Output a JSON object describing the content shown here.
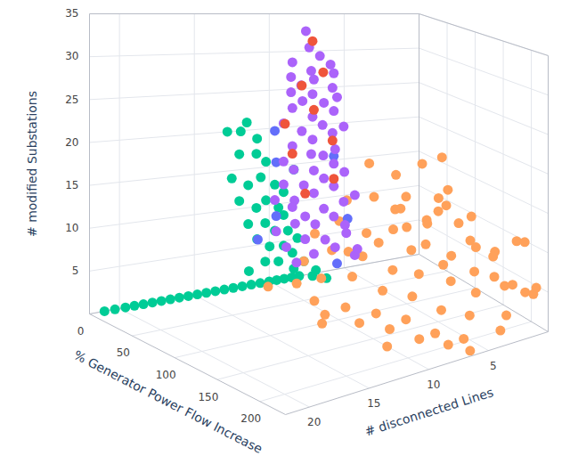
{
  "chart_data": {
    "type": "scatter3d",
    "xlabel": "% Generator Power Flow Increase",
    "ylabel": "# disconnected Lines",
    "zlabel": "# modified Substations",
    "xlim": [
      0,
      230
    ],
    "xticks": [
      0,
      50,
      100,
      150,
      200
    ],
    "ylim": [
      0,
      22
    ],
    "yticks": [
      5,
      10,
      15,
      20
    ],
    "zlim": [
      0,
      35
    ],
    "zticks": [
      5,
      10,
      15,
      20,
      25,
      30,
      35
    ],
    "grid": true,
    "series": [
      {
        "color": "#00cc96",
        "x": [
          0,
          0,
          0,
          0,
          0,
          0,
          0,
          0,
          0,
          0,
          0,
          0,
          0,
          0,
          0,
          0,
          0,
          0,
          0,
          0,
          0,
          0,
          0,
          0,
          2,
          0,
          4,
          0,
          3,
          6,
          0,
          2,
          5,
          8,
          0,
          3,
          6,
          9,
          2,
          5,
          8,
          10,
          4,
          7,
          10,
          12,
          5,
          9,
          14,
          12,
          15,
          3,
          18,
          20,
          25,
          30,
          10,
          14
        ],
        "y": [
          21,
          20.3,
          19.6,
          19,
          18.4,
          17.8,
          17.2,
          16.6,
          16,
          15.4,
          14.8,
          14.2,
          13.6,
          13,
          12.4,
          11.8,
          11.2,
          10.6,
          10,
          9.5,
          9,
          8.5,
          8,
          12.8,
          12,
          11.5,
          11,
          12,
          11,
          10.5,
          12.5,
          11.5,
          10.8,
          10,
          12,
          11,
          10.5,
          9.8,
          11.5,
          10.5,
          10,
          9.5,
          11,
          10.3,
          9.5,
          9,
          10.5,
          9.8,
          9,
          9.3,
          8.8,
          11.5,
          8.5,
          8,
          8,
          7.5,
          9.5,
          9
        ],
        "z": [
          0,
          0,
          0,
          0,
          0,
          0,
          0,
          0,
          0,
          0,
          0,
          0,
          0,
          0,
          0,
          0,
          0,
          0,
          0,
          0,
          0,
          0,
          0,
          20,
          20,
          21,
          19,
          17,
          17,
          16,
          14,
          13,
          14,
          13,
          11,
          10,
          11,
          10,
          8,
          8,
          7,
          9,
          6,
          5,
          5,
          4,
          3,
          3,
          2,
          7,
          6,
          2,
          3,
          1,
          2,
          1,
          12,
          15
        ]
      },
      {
        "color": "#ffa15a",
        "x": [
          40,
          60,
          80,
          100,
          120,
          70,
          50,
          90,
          110,
          140,
          160,
          60,
          80,
          100,
          130,
          150,
          180,
          200,
          45,
          70,
          95,
          120,
          140,
          170,
          190,
          210,
          225,
          50,
          75,
          100,
          125,
          150,
          175,
          200,
          220,
          60,
          85,
          110,
          135,
          160,
          185,
          210,
          230,
          40,
          100,
          130,
          155,
          180,
          205,
          220,
          30,
          55,
          85,
          115,
          145,
          175,
          200,
          230,
          35,
          65,
          95,
          125,
          155,
          185,
          210,
          120,
          90,
          150,
          60,
          30,
          115,
          170
        ],
        "y": [
          5,
          4,
          3,
          2,
          3,
          6,
          7,
          5,
          4,
          2,
          3,
          8,
          7,
          6,
          5,
          4,
          2,
          3,
          9,
          9,
          8,
          7,
          6,
          5,
          4,
          2,
          1,
          10,
          10,
          9,
          8,
          7,
          6,
          5,
          3,
          11,
          11,
          10,
          9,
          8,
          7,
          6,
          4,
          12,
          11,
          10,
          9,
          8,
          7,
          6,
          6,
          5,
          4,
          3,
          2,
          1,
          0.5,
          1,
          3,
          2,
          1,
          1,
          1,
          0.5,
          1,
          6,
          2,
          5,
          1,
          2,
          12,
          10
        ],
        "z": [
          16,
          15,
          17,
          14,
          13,
          13,
          12,
          12,
          11,
          12,
          10,
          10,
          9,
          10,
          9,
          8,
          9,
          7,
          8,
          7,
          7,
          6,
          6,
          6,
          5,
          6,
          5,
          5,
          4,
          5,
          4,
          4,
          3,
          3,
          3,
          3,
          2,
          2,
          2,
          2,
          1,
          1,
          2,
          2,
          1,
          1,
          1,
          0.5,
          0.5,
          0,
          4,
          6,
          6,
          5,
          5,
          4,
          4,
          6,
          9,
          8,
          9,
          7,
          7,
          10,
          11,
          15,
          18,
          14,
          11,
          6,
          1,
          0
        ]
      },
      {
        "color": "#636efa",
        "x": [
          8,
          10,
          30,
          40,
          10,
          5,
          35
        ],
        "y": [
          10,
          10,
          7,
          6.5,
          10,
          11,
          7
        ],
        "z": [
          20,
          16,
          17,
          9,
          9,
          6,
          3
        ]
      },
      {
        "color": "#ab63fa",
        "x": [
          10,
          15,
          20,
          12,
          25,
          18,
          30,
          10,
          22,
          14,
          28,
          35,
          10,
          20,
          16,
          26,
          12,
          30,
          20,
          24,
          10,
          34,
          15,
          28,
          20,
          12,
          32,
          25,
          18,
          10,
          30,
          22,
          14,
          35,
          26,
          18,
          10,
          30,
          22,
          15,
          34,
          26,
          12,
          20,
          30,
          16,
          24,
          36,
          10,
          20,
          28,
          14,
          32,
          22,
          40,
          18,
          38,
          44,
          8,
          40
        ],
        "y": [
          8,
          8,
          7.5,
          9,
          7,
          8,
          7,
          9,
          8,
          8.5,
          7,
          7,
          9,
          8,
          8.5,
          7.5,
          9,
          7,
          8,
          7.5,
          9.5,
          6.5,
          8.5,
          7,
          8,
          9,
          7,
          7.5,
          8,
          9.5,
          7,
          8,
          9,
          6.5,
          7.5,
          8.5,
          9.5,
          7,
          8,
          9,
          6.5,
          7.5,
          9,
          8.5,
          7,
          9,
          8,
          6.5,
          10,
          8.5,
          7.5,
          9.5,
          7,
          8,
          6,
          9,
          6.5,
          6,
          10,
          6
        ],
        "z": [
          33,
          31,
          30,
          29,
          29,
          28,
          28,
          27,
          27,
          26,
          26,
          25,
          25,
          25,
          24,
          24,
          23,
          23,
          22,
          21,
          21,
          21,
          20,
          20,
          19,
          18,
          18,
          17,
          17,
          16,
          16,
          15,
          15,
          15,
          14,
          13,
          13,
          13,
          12,
          11,
          11,
          10,
          10,
          9,
          9,
          8,
          8,
          8,
          7,
          6,
          6,
          5,
          5,
          4,
          4,
          3,
          7,
          5,
          11,
          12
        ]
      },
      {
        "color": "#ef553b",
        "x": [
          20,
          25,
          15,
          22,
          12,
          28,
          12,
          20,
          30
        ],
        "y": [
          8,
          7.5,
          8.5,
          8,
          9.5,
          7,
          9,
          8.5,
          7
        ],
        "z": [
          32,
          28,
          26,
          23,
          21,
          19,
          17,
          12,
          14
        ]
      }
    ]
  }
}
